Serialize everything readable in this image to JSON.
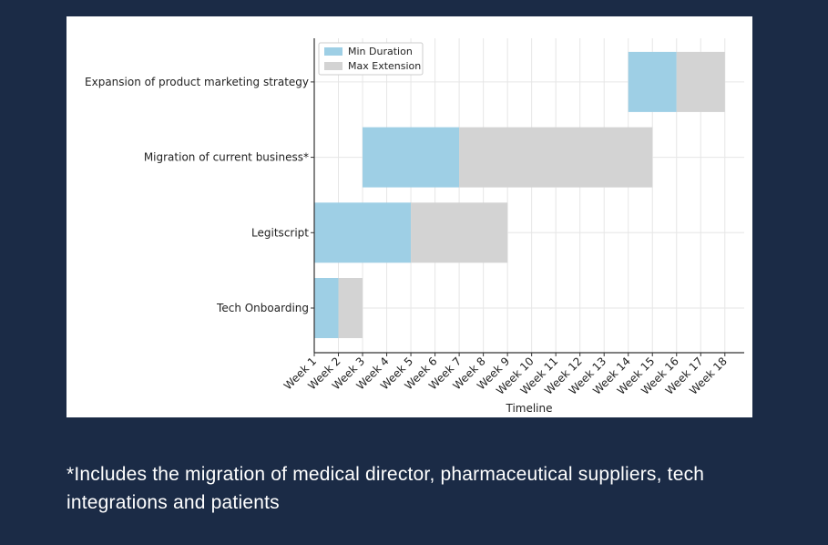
{
  "chart_data": {
    "type": "gantt",
    "x_label": "Timeline",
    "categories": [
      "Tech Onboarding",
      "Legitscript",
      "Migration of current business*",
      "Expansion of product marketing strategy"
    ],
    "start": [
      1,
      1,
      3,
      14
    ],
    "series": [
      {
        "name": "Min Duration",
        "color": "#9ecfe5",
        "values": [
          1,
          4,
          4,
          2
        ]
      },
      {
        "name": "Max Extension",
        "color": "#d3d3d3",
        "values": [
          1,
          4,
          8,
          2
        ]
      }
    ],
    "xlim": [
      1,
      18.8
    ],
    "xticks": [
      {
        "value": 1,
        "label": "Week 1"
      },
      {
        "value": 2,
        "label": "Week 2"
      },
      {
        "value": 3,
        "label": "Week 3"
      },
      {
        "value": 4,
        "label": "Week 4"
      },
      {
        "value": 5,
        "label": "Week 5"
      },
      {
        "value": 6,
        "label": "Week 6"
      },
      {
        "value": 7,
        "label": "Week 7"
      },
      {
        "value": 8,
        "label": "Week 8"
      },
      {
        "value": 9,
        "label": "Week 9"
      },
      {
        "value": 10,
        "label": "Week 10"
      },
      {
        "value": 11,
        "label": "Week 11"
      },
      {
        "value": 12,
        "label": "Week 12"
      },
      {
        "value": 13,
        "label": "Week 13"
      },
      {
        "value": 14,
        "label": "Week 14"
      },
      {
        "value": 15,
        "label": "Week 15"
      },
      {
        "value": 16,
        "label": "Week 16"
      },
      {
        "value": 17,
        "label": "Week 17"
      },
      {
        "value": 18,
        "label": "Week 18"
      }
    ],
    "grid": true,
    "legend": "upper left"
  },
  "footnote": "*Includes the migration of medical director, pharmaceutical suppliers, tech integrations and patients"
}
